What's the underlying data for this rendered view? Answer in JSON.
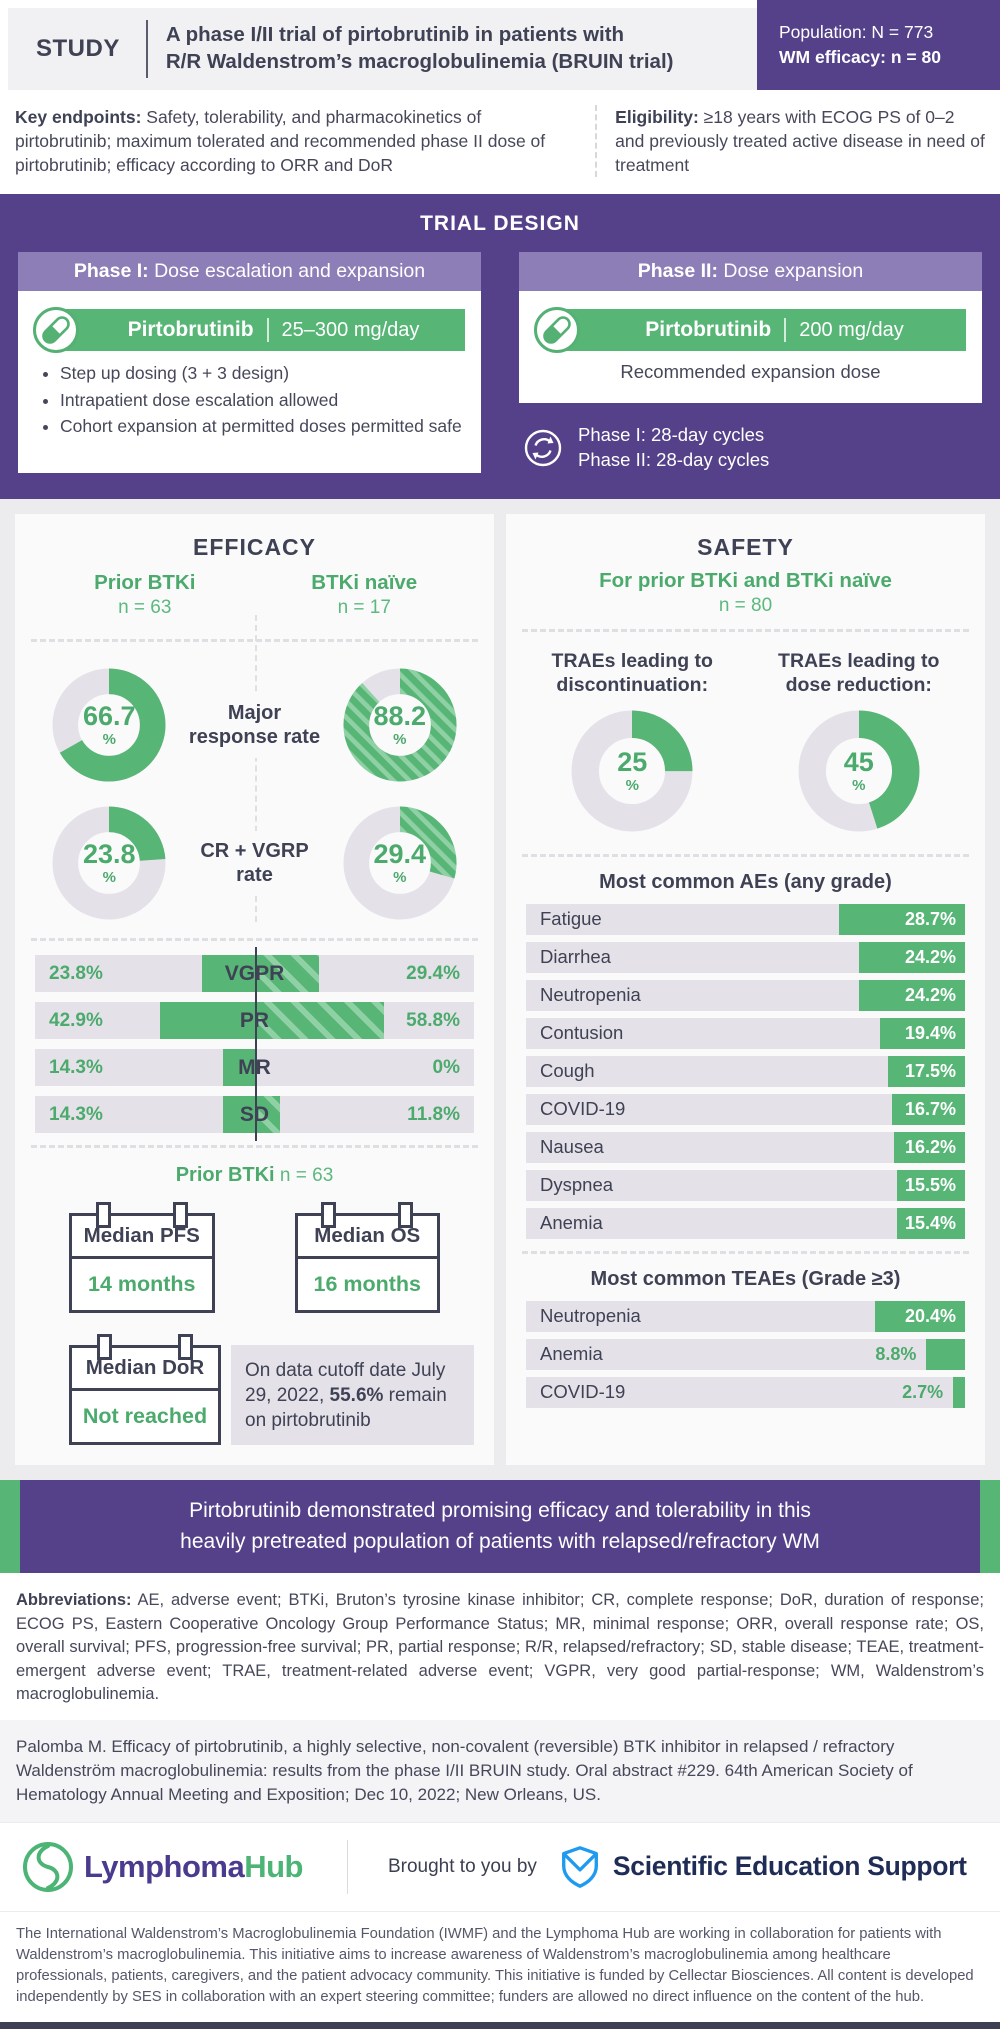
{
  "units": {
    "pct": "%"
  },
  "colors": {
    "purple": "#54418a",
    "purple_light": "#8d7eb8",
    "green": "#57b576",
    "green_stripe": "#8fd0a5",
    "green_text": "#4caa6d",
    "slate": "#3f4154",
    "track_gray": "#e4e2e8",
    "ses_blue": "#1e9bf0",
    "hub_purple": "#4a3b8e",
    "hub_green": "#4cb474"
  },
  "header": {
    "kicker": "STUDY",
    "title_line1": "A phase I/II trial of pirtobrutinib in patients with",
    "title_line2": "R/R Waldenstrom’s macroglobulinemia (BRUIN trial)",
    "population_line1": "Population: N = 773",
    "population_line2": "WM efficacy: n = 80"
  },
  "endpoints": {
    "key_label": "Key endpoints:",
    "key_text": " Safety, tolerability, and pharmacokinetics of pirtobrutinib; maximum tolerated and recommended phase II dose of pirtobrutinib; efficacy according to ORR and DoR",
    "elig_label": "Eligibility:",
    "elig_text": " ≥18 years with ECOG PS of 0–2 and previously treated active disease in need of treatment"
  },
  "trial_design": {
    "title": "TRIAL DESIGN",
    "phase1": {
      "header_bold": "Phase I:",
      "header_rest": " Dose escalation and expansion",
      "drug": "Pirtobrutinib",
      "dose": "25–300 mg/day",
      "bullets": [
        "Step up dosing (3 + 3 design)",
        "Intrapatient dose escalation allowed",
        "Cohort expansion at permitted doses permitted safe"
      ]
    },
    "phase2": {
      "header_bold": "Phase II:",
      "header_rest": " Dose expansion",
      "drug": "Pirtobrutinib",
      "dose": "200 mg/day",
      "note": "Recommended expansion dose"
    },
    "cycles_line1": "Phase I: 28-day cycles",
    "cycles_line2": "Phase II: 28-day cycles"
  },
  "efficacy": {
    "title": "EFFICACY",
    "cohorts": [
      {
        "name": "Prior BTKi",
        "n": "n = 63"
      },
      {
        "name": "BTKi naïve",
        "n": "n = 17"
      }
    ],
    "donut_rows": [
      {
        "label": "Major response rate",
        "left": {
          "value": 66.7,
          "display": "66.7"
        },
        "right": {
          "value": 88.2,
          "display": "88.2"
        }
      },
      {
        "label": "CR + VGRP rate",
        "left": {
          "value": 23.8,
          "display": "23.8"
        },
        "right": {
          "value": 29.4,
          "display": "29.4"
        }
      }
    ],
    "response_rows": [
      {
        "label": "VGPR",
        "left": "23.8%",
        "left_value": 23.8,
        "right": "29.4%",
        "right_value": 29.4
      },
      {
        "label": "PR",
        "left": "42.9%",
        "left_value": 42.9,
        "right": "58.8%",
        "right_value": 58.8
      },
      {
        "label": "MR",
        "left": "14.3%",
        "left_value": 14.3,
        "right": "0%",
        "right_value": 0
      },
      {
        "label": "SD",
        "left": "14.3%",
        "left_value": 14.3,
        "right": "11.8%",
        "right_value": 11.8
      }
    ],
    "survival": {
      "heading_bold": "Prior BTKi",
      "heading_rest": " n = 63",
      "cards": [
        {
          "title": "Median PFS",
          "value": "14 months"
        },
        {
          "title": "Median OS",
          "value": "16 months"
        },
        {
          "title": "Median DoR",
          "value": "Not reached"
        }
      ],
      "note_pre": "On data cutoff date July 29, 2022, ",
      "note_bold": "55.6%",
      "note_post": " remain on pirtobrutinib"
    }
  },
  "safety": {
    "title": "SAFETY",
    "subtitle": "For prior BTKi and BTKi naïve",
    "subtitle_n": "n = 80",
    "trae": [
      {
        "label_l1": "TRAEs leading to",
        "label_l2": "discontinuation:",
        "value": 25,
        "display": "25"
      },
      {
        "label_l1": "TRAEs leading to",
        "label_l2": "dose reduction:",
        "value": 45,
        "display": "45"
      }
    ],
    "aes_title": "Most common AEs (any grade)",
    "aes": [
      {
        "name": "Fatigue",
        "pct": "28.7%",
        "value": 28.7
      },
      {
        "name": "Diarrhea",
        "pct": "24.2%",
        "value": 24.2
      },
      {
        "name": "Neutropenia",
        "pct": "24.2%",
        "value": 24.2
      },
      {
        "name": "Contusion",
        "pct": "19.4%",
        "value": 19.4
      },
      {
        "name": "Cough",
        "pct": "17.5%",
        "value": 17.5
      },
      {
        "name": "COVID-19",
        "pct": "16.7%",
        "value": 16.7
      },
      {
        "name": "Nausea",
        "pct": "16.2%",
        "value": 16.2
      },
      {
        "name": "Dyspnea",
        "pct": "15.5%",
        "value": 15.5
      },
      {
        "name": "Anemia",
        "pct": "15.4%",
        "value": 15.4
      }
    ],
    "teaes_title": "Most common TEAEs (Grade ≥3)",
    "teaes": [
      {
        "name": "Neutropenia",
        "pct": "20.4%",
        "value": 20.4
      },
      {
        "name": "Anemia",
        "pct": "8.8%",
        "value": 8.8
      },
      {
        "name": "COVID-19",
        "pct": "2.7%",
        "value": 2.7
      }
    ]
  },
  "conclusion": {
    "line1": "Pirtobrutinib demonstrated promising efficacy and tolerability in this",
    "line2": "heavily pretreated population of patients with relapsed/refractory WM"
  },
  "abbreviations": {
    "label": "Abbreviations:",
    "text": " AE, adverse event; BTKi, Bruton’s tyrosine kinase inhibitor; CR, complete response; DoR, duration of response; ECOG PS, Eastern Cooperative Oncology Group Performance Status; MR, minimal response; ORR, overall response rate; OS, overall survival; PFS, progression-free survival; PR, partial response; R/R, relapsed/refractory; SD, stable disease; TEAE, treatment-emergent adverse event; TRAE, treatment-related adverse event; VGPR, very good partial-response; WM, Waldenstrom’s macroglobulinemia."
  },
  "citation": {
    "text": "Palomba M. Efficacy of pirtobrutinib, a highly selective, non-covalent (reversible) BTK inhibitor in relapsed / refractory Waldenström macroglobulinemia: results from the phase I/II BRUIN study. Oral abstract #229. 64th American Society of Hematology Annual Meeting and Exposition; Dec 10, 2022; New Orleans, US."
  },
  "branding": {
    "lymphoma": "Lymphoma",
    "hub": "Hub",
    "brought_by": "Brought to you by",
    "ses": "Scientific Education Support"
  },
  "legal": {
    "text": "The International Waldenstrom’s Macroglobulinemia Foundation (IWMF) and the Lymphoma Hub are working in collaboration for patients with Waldenstrom’s macroglobulinemia. This initiative aims to increase awareness of Waldenstrom’s macroglobulinemia among healthcare professionals, patients, caregivers, and the patient advocacy community. This initiative is funded by Cellectar Biosciences. All content is developed independently by SES in collaboration with an expert steering committee; funders are allowed no direct influence on the content of the hub."
  },
  "chart_data": [
    {
      "type": "pie",
      "subtype": "donut",
      "title": "Major response rate",
      "series": [
        {
          "name": "Prior BTKi (n = 63)",
          "value": 66.7
        },
        {
          "name": "BTKi naïve (n = 17)",
          "value": 88.2
        }
      ],
      "unit": "%"
    },
    {
      "type": "pie",
      "subtype": "donut",
      "title": "CR + VGRP rate",
      "series": [
        {
          "name": "Prior BTKi (n = 63)",
          "value": 23.8
        },
        {
          "name": "BTKi naïve (n = 17)",
          "value": 29.4
        }
      ],
      "unit": "%"
    },
    {
      "type": "bar",
      "title": "Best response by cohort",
      "categories": [
        "VGPR",
        "PR",
        "MR",
        "SD"
      ],
      "series": [
        {
          "name": "Prior BTKi (n = 63)",
          "values": [
            23.8,
            42.9,
            14.3,
            14.3
          ]
        },
        {
          "name": "BTKi naïve (n = 17)",
          "values": [
            29.4,
            58.8,
            0,
            11.8
          ]
        }
      ],
      "unit": "%"
    },
    {
      "type": "pie",
      "subtype": "donut",
      "title": "TRAEs leading to discontinuation (n = 80)",
      "values": [
        25
      ],
      "unit": "%"
    },
    {
      "type": "pie",
      "subtype": "donut",
      "title": "TRAEs leading to dose reduction (n = 80)",
      "values": [
        45
      ],
      "unit": "%"
    },
    {
      "type": "bar",
      "title": "Most common AEs (any grade)",
      "categories": [
        "Fatigue",
        "Diarrhea",
        "Neutropenia",
        "Contusion",
        "Cough",
        "COVID-19",
        "Nausea",
        "Dyspnea",
        "Anemia"
      ],
      "values": [
        28.7,
        24.2,
        24.2,
        19.4,
        17.5,
        16.7,
        16.2,
        15.5,
        15.4
      ],
      "unit": "%"
    },
    {
      "type": "bar",
      "title": "Most common TEAEs (Grade ≥3)",
      "categories": [
        "Neutropenia",
        "Anemia",
        "COVID-19"
      ],
      "values": [
        20.4,
        8.8,
        2.7
      ],
      "unit": "%"
    }
  ]
}
